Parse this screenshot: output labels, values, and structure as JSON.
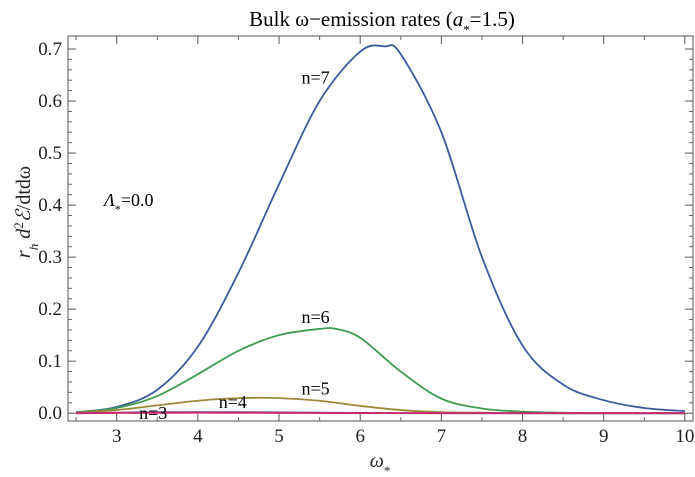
{
  "chart_data": {
    "type": "line",
    "title": "Bulk ω−emission rates (a₊=1.5)",
    "title_parts": {
      "prefix": "Bulk ω−emission rates (",
      "var": "a",
      "sub": "*",
      "suffix": "=1.5)"
    },
    "xlabel": "ω*",
    "xlabel_parts": {
      "base": "ω",
      "sub": "*"
    },
    "ylabel": "r_h d²ℰ/dtdω",
    "ylabel_parts": {
      "r": "r",
      "h": "h",
      "d": " d",
      "two": "2",
      "E": "ℰ",
      "rest": "/dtdω"
    },
    "xlim": [
      2.4,
      10.1
    ],
    "ylim": [
      -0.015,
      0.725
    ],
    "xticks": [
      3,
      4,
      5,
      6,
      7,
      8,
      9,
      10
    ],
    "yticks": [
      0.0,
      0.1,
      0.2,
      0.3,
      0.4,
      0.5,
      0.6,
      0.7
    ],
    "ytick_labels": [
      "0.0",
      "0.1",
      "0.2",
      "0.3",
      "0.4",
      "0.5",
      "0.6",
      "0.7"
    ],
    "grid": false,
    "annotations": {
      "lambda": "Λ*=0.0",
      "lambda_parts": {
        "base": "Λ",
        "sub": "*",
        "rest": "=0.0"
      }
    },
    "series": [
      {
        "name": "n=7",
        "color": "#3d5b9c",
        "x": [
          2.5,
          3.0,
          3.5,
          4.0,
          4.5,
          5.0,
          5.5,
          6.0,
          6.3,
          6.5,
          7.0,
          7.5,
          8.0,
          8.5,
          9.0,
          9.5,
          10.0
        ],
        "y": [
          0.002,
          0.012,
          0.045,
          0.128,
          0.27,
          0.44,
          0.6,
          0.695,
          0.705,
          0.69,
          0.54,
          0.3,
          0.13,
          0.055,
          0.025,
          0.01,
          0.004
        ]
      },
      {
        "name": "n=6",
        "color": "#3f9c55",
        "x": [
          2.5,
          3.0,
          3.5,
          4.0,
          4.5,
          5.0,
          5.5,
          5.7,
          6.0,
          6.5,
          7.0,
          7.5,
          8.0,
          8.5,
          9.0,
          10.0
        ],
        "y": [
          0.002,
          0.01,
          0.033,
          0.075,
          0.12,
          0.15,
          0.162,
          0.162,
          0.145,
          0.08,
          0.028,
          0.009,
          0.003,
          0.001,
          0.0,
          0.0
        ]
      },
      {
        "name": "n=5",
        "color": "#9c8a3a",
        "x": [
          2.5,
          3.0,
          3.5,
          4.0,
          4.5,
          5.0,
          5.5,
          6.0,
          6.5,
          7.0,
          7.5,
          8.0,
          9.0,
          10.0
        ],
        "y": [
          0.001,
          0.006,
          0.015,
          0.024,
          0.029,
          0.029,
          0.024,
          0.014,
          0.006,
          0.002,
          0.001,
          0.0,
          0.0,
          0.0
        ]
      },
      {
        "name": "n=4",
        "color": "#6a3d8a",
        "x": [
          2.5,
          3.0,
          3.5,
          4.0,
          4.5,
          5.0,
          5.5,
          6.0,
          7.0,
          8.0,
          10.0
        ],
        "y": [
          0.0,
          0.001,
          0.002,
          0.002,
          0.002,
          0.0015,
          0.001,
          0.0005,
          0.0,
          0.0,
          0.0
        ]
      },
      {
        "name": "n=3",
        "color": "#cc2a6e",
        "x": [
          2.5,
          3.0,
          4.0,
          5.0,
          6.0,
          8.0,
          10.0
        ],
        "y": [
          0.0,
          0.0005,
          0.0008,
          0.0005,
          0.0002,
          0.0,
          0.0
        ]
      }
    ],
    "series_labels": [
      {
        "series": 0,
        "text": "n=7",
        "x": 5.45,
        "y": 0.645
      },
      {
        "series": 1,
        "text": "n=6",
        "x": 5.45,
        "y": 0.185
      },
      {
        "series": 2,
        "text": "n=5",
        "x": 5.45,
        "y": 0.047
      },
      {
        "series": 3,
        "text": "n=4",
        "x": 4.43,
        "y": 0.022
      },
      {
        "series": 4,
        "text": "n=3",
        "x": 3.45,
        "y": 0.0
      }
    ]
  }
}
